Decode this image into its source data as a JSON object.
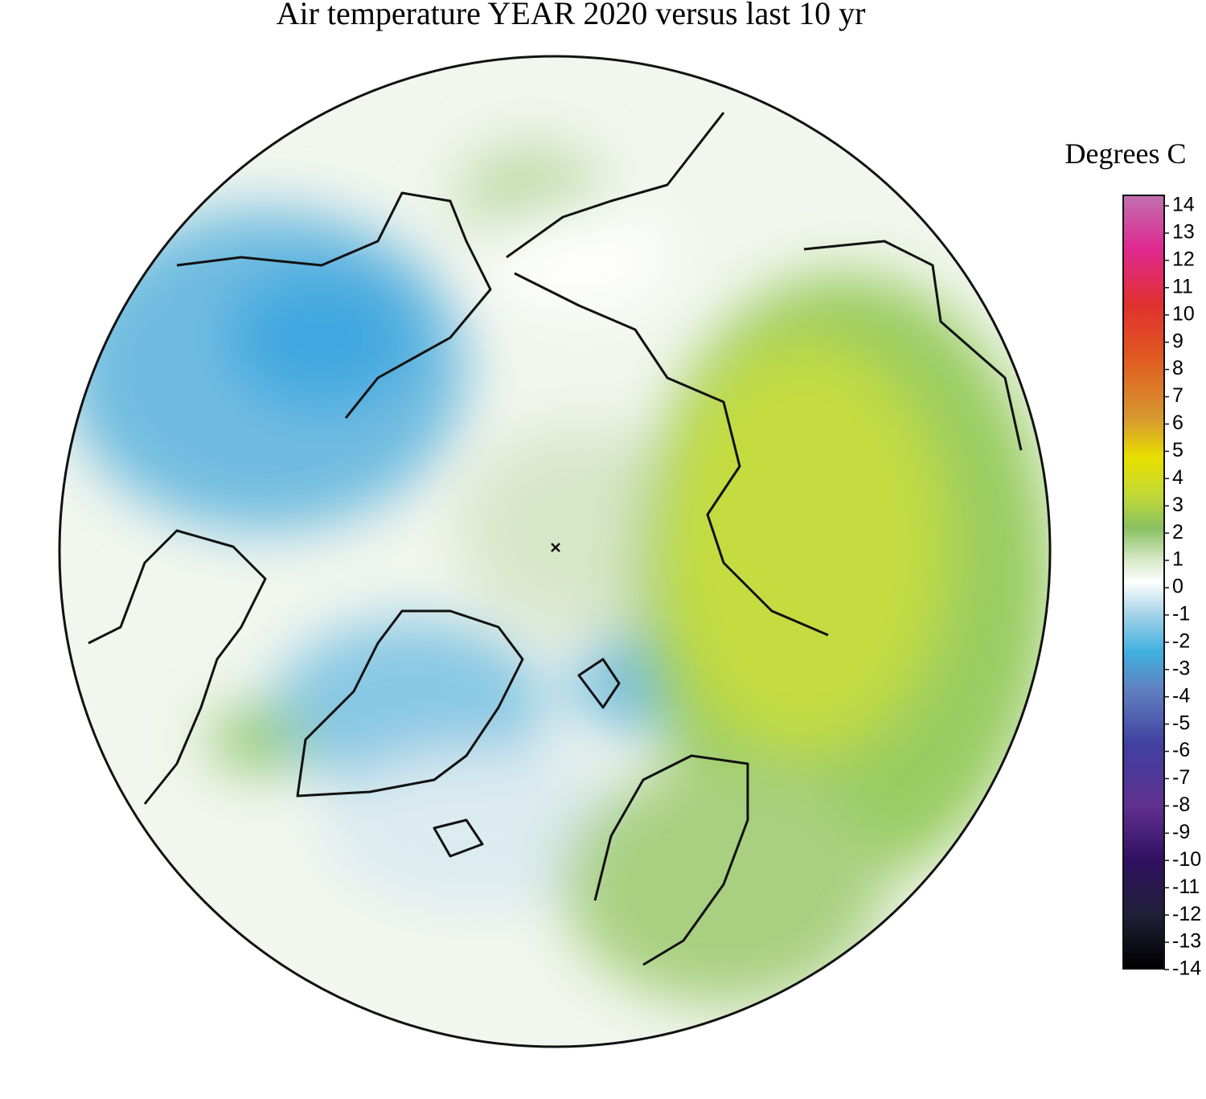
{
  "title": "Air temperature YEAR 2020 versus last 10 yr",
  "colorbar": {
    "label": "Degrees C",
    "lim": [
      -14,
      14
    ],
    "ticks": [
      14,
      13,
      12,
      11,
      10,
      9,
      8,
      7,
      6,
      5,
      4,
      3,
      2,
      1,
      0,
      -1,
      -2,
      -3,
      -4,
      -5,
      -6,
      -7,
      -8,
      -9,
      -10,
      -11,
      -12,
      -13,
      -14
    ]
  }
}
